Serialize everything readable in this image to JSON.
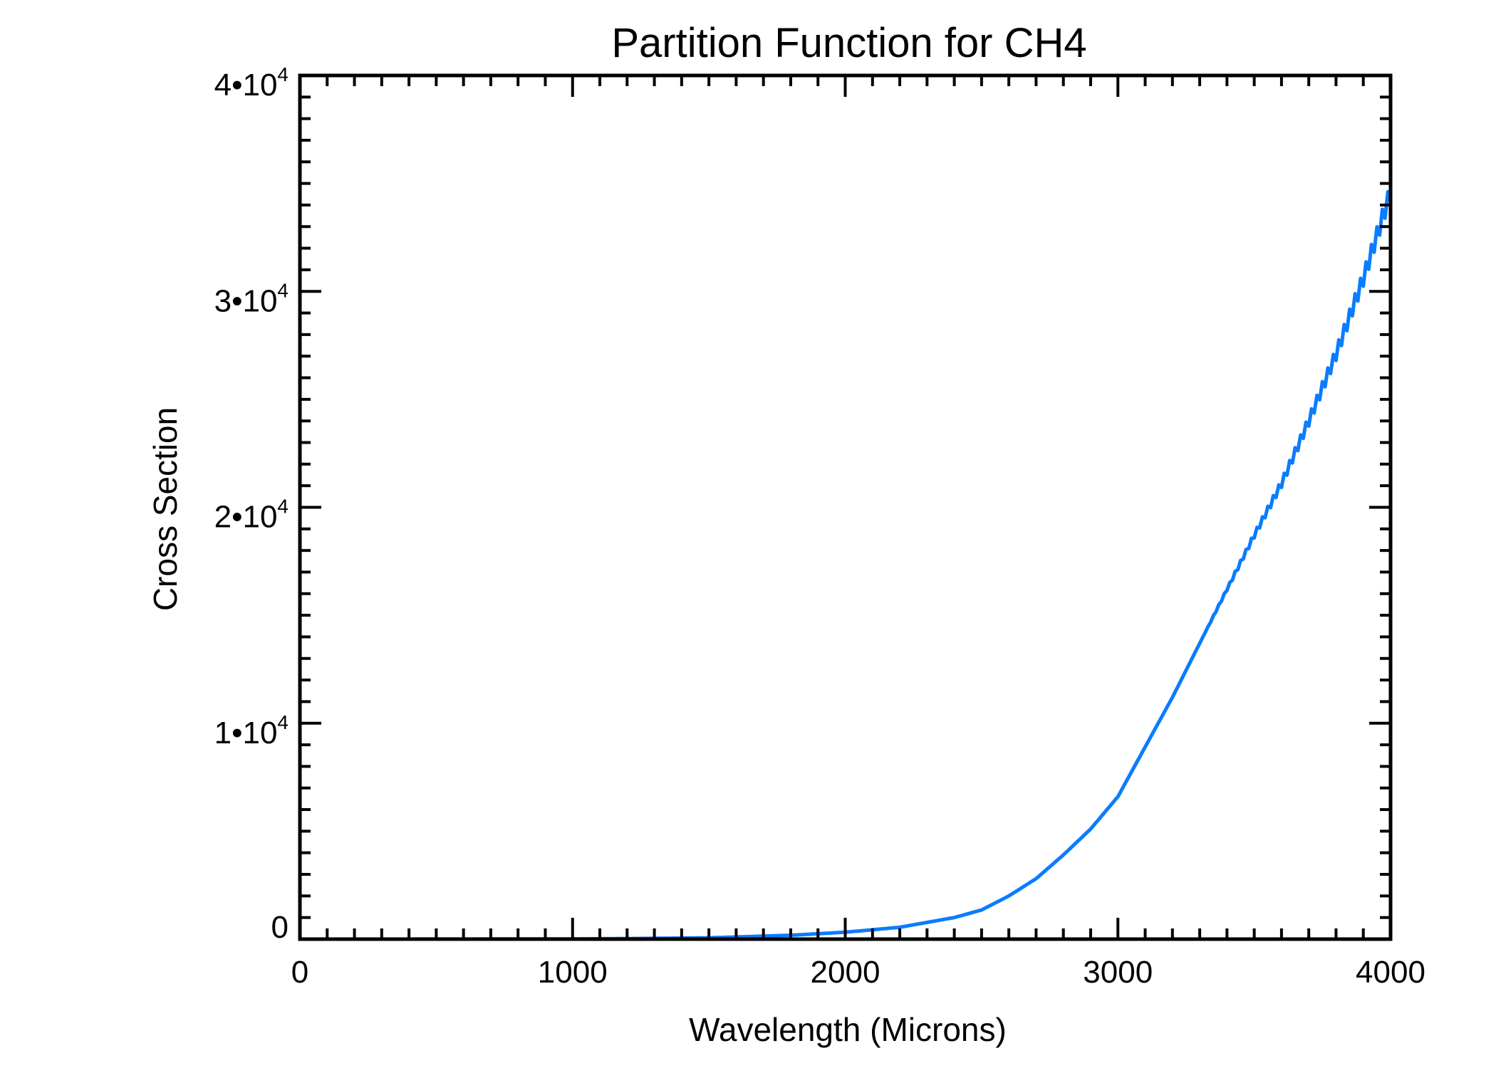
{
  "chart_data": {
    "type": "line",
    "title": "Partition Function for CH4",
    "xlabel": "Wavelength (Microns)",
    "ylabel": "Cross Section",
    "xlim": [
      0,
      4000
    ],
    "ylim": [
      0,
      40000
    ],
    "xticks": [
      0,
      1000,
      2000,
      3000,
      4000
    ],
    "xtick_labels": [
      "0",
      "1000",
      "2000",
      "3000",
      "4000"
    ],
    "yticks": [
      0,
      10000,
      20000,
      30000,
      40000
    ],
    "ytick_labels": [
      {
        "mant": "0",
        "exp": ""
      },
      {
        "mant": "1•10",
        "exp": "4"
      },
      {
        "mant": "2•10",
        "exp": "4"
      },
      {
        "mant": "3•10",
        "exp": "4"
      },
      {
        "mant": "4•10",
        "exp": "4"
      }
    ],
    "x_minor_step": 100,
    "y_minor_step": 1000,
    "grid": false,
    "series": [
      {
        "name": "CH4",
        "color": "#0a7cff",
        "x": [
          0,
          500,
          1000,
          1200,
          1500,
          1800,
          2000,
          2200,
          2400,
          2500,
          2600,
          2700,
          2800,
          2900,
          3000,
          3100,
          3200,
          3300,
          3400,
          3500,
          3600,
          3700,
          3800,
          3900,
          4000
        ],
        "y": [
          0,
          2,
          10,
          25,
          60,
          180,
          320,
          550,
          1000,
          1350,
          2000,
          2800,
          3900,
          5100,
          6600,
          8900,
          11200,
          13700,
          16200,
          18700,
          21100,
          24000,
          27100,
          30600,
          34600
        ]
      }
    ]
  }
}
